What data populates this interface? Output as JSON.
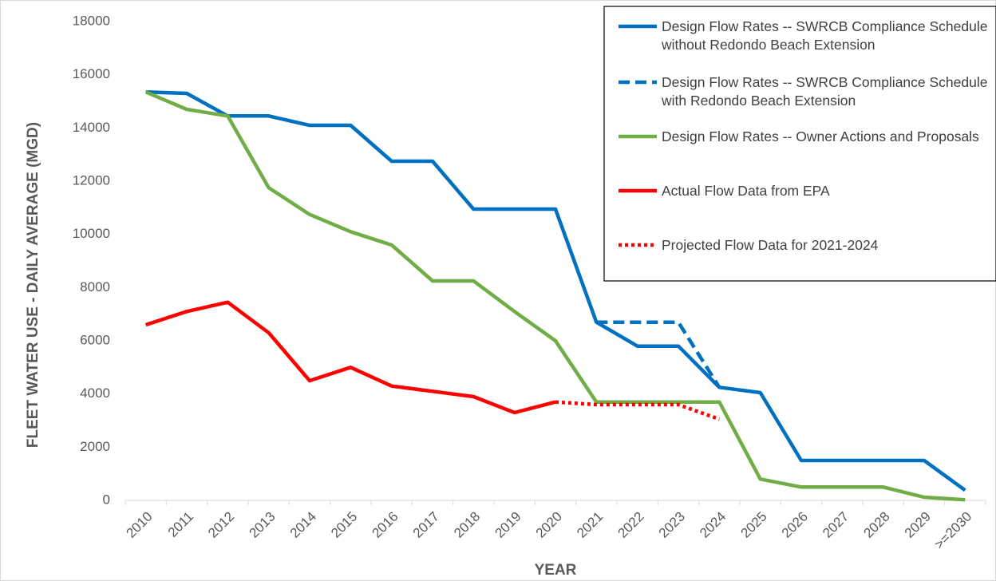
{
  "chart_data": {
    "type": "line",
    "x_label": "YEAR",
    "y_label": "FLEET WATER USE - DAILY AVERAGE (MGD)",
    "categories": [
      "2010",
      "2011",
      "2012",
      "2013",
      "2014",
      "2015",
      "2016",
      "2017",
      "2018",
      "2019",
      "2020",
      "2021",
      "2022",
      "2023",
      "2024",
      "2025",
      "2026",
      "2027",
      "2028",
      "2029",
      ">=2030"
    ],
    "ylim": [
      0,
      18000
    ],
    "yticks": [
      0,
      2000,
      4000,
      6000,
      8000,
      10000,
      12000,
      14000,
      16000,
      18000
    ],
    "grid": false,
    "legend": "top-right",
    "series": [
      {
        "name": "Design Flow Rates -- SWRCB Compliance Schedule without Redondo Beach Extension",
        "color": "#0070c0",
        "style": "solid",
        "values": [
          15350,
          15300,
          14450,
          14450,
          14100,
          14100,
          12750,
          12750,
          10950,
          10950,
          10950,
          6700,
          5800,
          5800,
          4250,
          4050,
          1500,
          1500,
          1500,
          1500,
          380
        ]
      },
      {
        "name": "Design Flow Rates -- SWRCB Compliance Schedule with Redondo Beach Extension",
        "color": "#0070c0",
        "style": "dashed",
        "values": [
          null,
          null,
          null,
          null,
          null,
          null,
          null,
          null,
          null,
          null,
          null,
          6700,
          6700,
          6700,
          4250,
          null,
          null,
          null,
          null,
          null,
          null
        ]
      },
      {
        "name": "Design Flow Rates -- Owner Actions and Proposals",
        "color": "#70ad47",
        "style": "solid",
        "values": [
          15350,
          14700,
          14450,
          11750,
          10750,
          10100,
          9600,
          8250,
          8250,
          7100,
          6000,
          3700,
          3700,
          3700,
          3700,
          800,
          500,
          500,
          500,
          120,
          20
        ]
      },
      {
        "name": "Actual Flow Data from EPA",
        "color": "#ff0000",
        "style": "solid",
        "values": [
          6600,
          7100,
          7450,
          6300,
          4500,
          5000,
          4300,
          4100,
          3900,
          3300,
          3700,
          null,
          null,
          null,
          null,
          null,
          null,
          null,
          null,
          null,
          null
        ]
      },
      {
        "name": "Projected Flow Data for 2021-2024",
        "color": "#ff0000",
        "style": "dotted",
        "values": [
          null,
          null,
          null,
          null,
          null,
          null,
          null,
          null,
          null,
          null,
          3700,
          3600,
          3600,
          3600,
          3050,
          null,
          null,
          null,
          null,
          null,
          null
        ]
      }
    ]
  }
}
